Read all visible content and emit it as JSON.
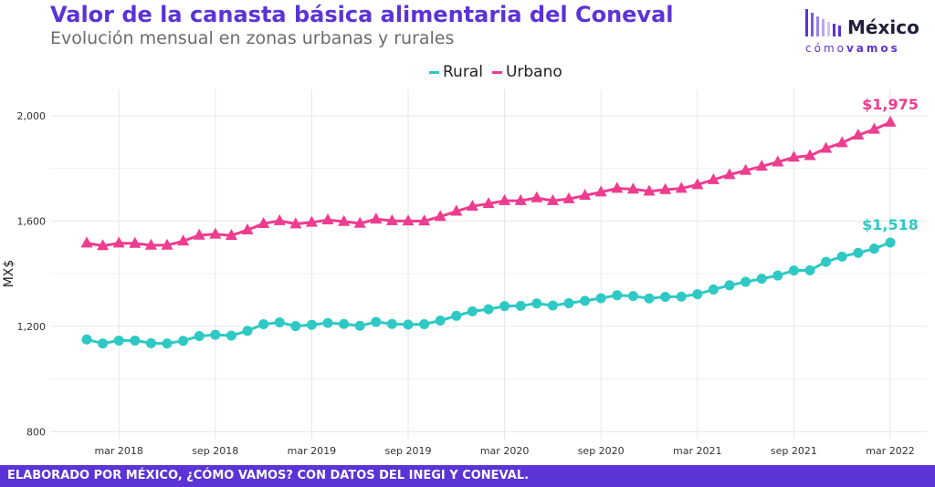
{
  "header": {
    "title": "Valor de la canasta básica alimentaria del Coneval",
    "subtitle": "Evolución mensual en zonas urbanas y rurales"
  },
  "logo": {
    "mexico": "México",
    "como": "cómo",
    "vamos": "vamos"
  },
  "footer": {
    "text": "ELABORADO POR MÉXICO, ¿CÓMO VAMOS? CON DATOS DEL INEGI Y CONEVAL."
  },
  "colors": {
    "rural": "#2ec9c4",
    "urbano": "#ee3c8f",
    "brand": "#5b33d6"
  },
  "chart_data": {
    "type": "line",
    "title": "Valor de la canasta básica alimentaria del Coneval",
    "subtitle": "Evolución mensual en zonas urbanas y rurales",
    "xlabel": "",
    "ylabel": "MX$",
    "ylim": [
      770,
      2100
    ],
    "yticks": [
      800,
      1200,
      1600,
      2000
    ],
    "ytick_labels": [
      "800",
      "1,200",
      "1,600",
      "2,000"
    ],
    "xtick_labels": [
      "mar 2018",
      "sep 2018",
      "mar 2019",
      "sep 2019",
      "mar 2020",
      "sep 2020",
      "mar 2021",
      "sep 2021",
      "mar 2022"
    ],
    "xtick_months": [
      "2018-03",
      "2018-09",
      "2019-03",
      "2019-09",
      "2020-03",
      "2020-09",
      "2021-03",
      "2021-09",
      "2022-03"
    ],
    "x": [
      "2018-01",
      "2018-02",
      "2018-03",
      "2018-04",
      "2018-05",
      "2018-06",
      "2018-07",
      "2018-08",
      "2018-09",
      "2018-10",
      "2018-11",
      "2018-12",
      "2019-01",
      "2019-02",
      "2019-03",
      "2019-04",
      "2019-05",
      "2019-06",
      "2019-07",
      "2019-08",
      "2019-09",
      "2019-10",
      "2019-11",
      "2019-12",
      "2020-01",
      "2020-02",
      "2020-03",
      "2020-04",
      "2020-05",
      "2020-06",
      "2020-07",
      "2020-08",
      "2020-09",
      "2020-10",
      "2020-11",
      "2020-12",
      "2021-01",
      "2021-02",
      "2021-03",
      "2021-04",
      "2021-05",
      "2021-06",
      "2021-07",
      "2021-08",
      "2021-09",
      "2021-10",
      "2021-11",
      "2021-12",
      "2022-01",
      "2022-02",
      "2022-03"
    ],
    "grid": true,
    "legend_position": "top-center",
    "series": [
      {
        "name": "Rural",
        "marker": "circle",
        "color": "#2ec9c4",
        "end_label": "$1,518",
        "values": [
          1150,
          1135,
          1146,
          1146,
          1136,
          1135,
          1145,
          1163,
          1168,
          1165,
          1183,
          1208,
          1215,
          1201,
          1206,
          1213,
          1209,
          1202,
          1217,
          1209,
          1207,
          1208,
          1222,
          1240,
          1257,
          1265,
          1277,
          1278,
          1287,
          1279,
          1288,
          1297,
          1307,
          1318,
          1315,
          1306,
          1312,
          1313,
          1322,
          1340,
          1356,
          1369,
          1381,
          1393,
          1412,
          1413,
          1445,
          1465,
          1479,
          1495,
          1518
        ]
      },
      {
        "name": "Urbano",
        "marker": "triangle",
        "color": "#ee3c8f",
        "end_label": "$1,975",
        "values": [
          1516,
          1506,
          1516,
          1515,
          1508,
          1508,
          1524,
          1546,
          1550,
          1545,
          1566,
          1590,
          1601,
          1589,
          1595,
          1604,
          1598,
          1591,
          1607,
          1601,
          1600,
          1600,
          1617,
          1637,
          1656,
          1666,
          1677,
          1677,
          1688,
          1677,
          1684,
          1697,
          1710,
          1724,
          1721,
          1713,
          1719,
          1724,
          1738,
          1757,
          1776,
          1792,
          1808,
          1824,
          1842,
          1848,
          1876,
          1897,
          1926,
          1948,
          1975
        ]
      }
    ]
  }
}
